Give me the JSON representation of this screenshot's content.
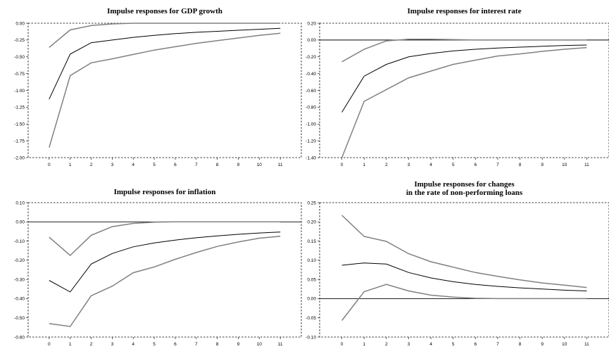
{
  "chart_data": [
    {
      "type": "line",
      "title": "Impulse responses for GDP growth",
      "x": [
        0,
        1,
        2,
        3,
        4,
        5,
        6,
        7,
        8,
        9,
        10,
        11
      ],
      "ylim": [
        -2.0,
        0.0
      ],
      "yticks": [
        "0.00",
        "-0.25",
        "-0.50",
        "-0.75",
        "-1.00",
        "-1.25",
        "-1.50",
        "-1.75",
        "-2.00"
      ],
      "ytick_values": [
        0,
        -0.25,
        -0.5,
        -0.75,
        -1.0,
        -1.25,
        -1.5,
        -1.75,
        -2.0
      ],
      "xlim": [
        -1,
        12
      ],
      "zero_line": false,
      "series": [
        {
          "role": "upper",
          "values": [
            -0.36,
            -0.1,
            -0.035,
            -0.01,
            0.0,
            0.0,
            0.0,
            0.0,
            0.0,
            0.0,
            0.0,
            0.0
          ]
        },
        {
          "role": "response",
          "values": [
            -1.13,
            -0.46,
            -0.29,
            -0.25,
            -0.21,
            -0.18,
            -0.155,
            -0.135,
            -0.12,
            -0.105,
            -0.09,
            -0.075
          ]
        },
        {
          "role": "lower",
          "values": [
            -1.85,
            -0.78,
            -0.59,
            -0.53,
            -0.465,
            -0.4,
            -0.35,
            -0.3,
            -0.26,
            -0.22,
            -0.18,
            -0.15
          ]
        }
      ]
    },
    {
      "type": "line",
      "title": "Impulse responses for interest rate",
      "x": [
        0,
        1,
        2,
        3,
        4,
        5,
        6,
        7,
        8,
        9,
        10,
        11
      ],
      "ylim": [
        -1.4,
        0.2
      ],
      "yticks": [
        "0.20",
        "0.00",
        "-0.20",
        "-0.40",
        "-0.60",
        "-0.80",
        "-1.00",
        "-1.20",
        "-1.40"
      ],
      "ytick_values": [
        0.2,
        0,
        -0.2,
        -0.4,
        -0.6,
        -0.8,
        -1.0,
        -1.2,
        -1.4
      ],
      "xlim": [
        -1,
        12
      ],
      "zero_line": true,
      "series": [
        {
          "role": "upper",
          "values": [
            -0.26,
            -0.11,
            -0.01,
            0.01,
            0.01,
            0.005,
            0.0,
            0.0,
            0.0,
            0.0,
            0.0,
            0.0
          ]
        },
        {
          "role": "response",
          "values": [
            -0.86,
            -0.43,
            -0.29,
            -0.2,
            -0.16,
            -0.13,
            -0.11,
            -0.095,
            -0.085,
            -0.075,
            -0.065,
            -0.06
          ]
        },
        {
          "role": "lower",
          "values": [
            -1.4,
            -0.73,
            -0.59,
            -0.45,
            -0.37,
            -0.29,
            -0.24,
            -0.19,
            -0.165,
            -0.135,
            -0.11,
            -0.09
          ]
        }
      ]
    },
    {
      "type": "line",
      "title": "Impulse responses for inflation",
      "x": [
        0,
        1,
        2,
        3,
        4,
        5,
        6,
        7,
        8,
        9,
        10,
        11
      ],
      "ylim": [
        -0.6,
        0.1
      ],
      "yticks": [
        "0.10",
        "0.00",
        "-0.10",
        "-0.20",
        "-0.30",
        "-0.40",
        "-0.50",
        "-0.60"
      ],
      "ytick_values": [
        0.1,
        0,
        -0.1,
        -0.2,
        -0.3,
        -0.4,
        -0.5,
        -0.6
      ],
      "xlim": [
        -1,
        12
      ],
      "zero_line": true,
      "series": [
        {
          "role": "upper",
          "values": [
            -0.08,
            -0.175,
            -0.07,
            -0.025,
            -0.008,
            -0.002,
            0.0,
            0.0,
            0.0,
            0.0,
            0.0,
            0.0
          ]
        },
        {
          "role": "response",
          "values": [
            -0.305,
            -0.365,
            -0.22,
            -0.165,
            -0.13,
            -0.11,
            -0.095,
            -0.083,
            -0.073,
            -0.065,
            -0.058,
            -0.053
          ]
        },
        {
          "role": "lower",
          "values": [
            -0.53,
            -0.545,
            -0.385,
            -0.335,
            -0.265,
            -0.235,
            -0.195,
            -0.16,
            -0.128,
            -0.105,
            -0.085,
            -0.075
          ]
        }
      ]
    },
    {
      "type": "line",
      "title": "Impulse responses for changes",
      "title2": "in the rate of non-performing loans",
      "x": [
        0,
        1,
        2,
        3,
        4,
        5,
        6,
        7,
        8,
        9,
        10,
        11
      ],
      "ylim": [
        -0.1,
        0.25
      ],
      "yticks": [
        "0.25",
        "0.20",
        "0.15",
        "0.10",
        "0.05",
        "0.00",
        "-0.05",
        "-0.10"
      ],
      "ytick_values": [
        0.25,
        0.2,
        0.15,
        0.1,
        0.05,
        0,
        -0.05,
        -0.1
      ],
      "xlim": [
        -1,
        12
      ],
      "zero_line": true,
      "series": [
        {
          "role": "upper",
          "values": [
            0.217,
            0.162,
            0.149,
            0.117,
            0.096,
            0.082,
            0.068,
            0.058,
            0.049,
            0.041,
            0.035,
            0.029
          ]
        },
        {
          "role": "response",
          "values": [
            0.087,
            0.093,
            0.09,
            0.068,
            0.054,
            0.044,
            0.037,
            0.032,
            0.028,
            0.025,
            0.022,
            0.02
          ]
        },
        {
          "role": "lower",
          "values": [
            -0.057,
            0.018,
            0.037,
            0.02,
            0.009,
            0.004,
            0.001,
            0.0,
            0.0,
            0.0,
            0.0,
            0.0
          ]
        }
      ]
    }
  ]
}
